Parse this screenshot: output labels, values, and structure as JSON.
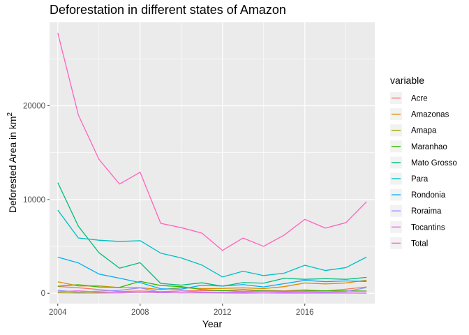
{
  "chart_data": {
    "type": "line",
    "title": "Deforestation in different states of Amazon",
    "xlabel": "Year",
    "ylabel": "Deforested Area in km",
    "ylabel_superscript": "2",
    "xlim": [
      2003.6,
      2019.4
    ],
    "ylim": [
      -1100,
      28900
    ],
    "x_ticks": [
      2004,
      2008,
      2012,
      2016
    ],
    "x_tick_labels": [
      "2004",
      "2008",
      "2012",
      "2016"
    ],
    "y_ticks": [
      0,
      10000,
      20000
    ],
    "y_tick_labels": [
      "0",
      "10000",
      "20000"
    ],
    "grid": true,
    "legend_title": "variable",
    "legend_position": "right",
    "x": [
      2004,
      2005,
      2006,
      2007,
      2008,
      2009,
      2010,
      2011,
      2012,
      2013,
      2014,
      2015,
      2016,
      2017,
      2018,
      2019
    ],
    "series": [
      {
        "name": "Acre",
        "color": "#F8766D",
        "values": [
          730,
          590,
          400,
          180,
          250,
          170,
          260,
          280,
          300,
          220,
          310,
          260,
          370,
          250,
          440,
          680
        ]
      },
      {
        "name": "Amazonas",
        "color": "#D89000",
        "values": [
          1230,
          780,
          790,
          610,
          600,
          400,
          600,
          500,
          520,
          580,
          500,
          710,
          1100,
          1000,
          1100,
          1400
        ]
      },
      {
        "name": "Amapa",
        "color": "#A3A500",
        "values": [
          50,
          30,
          30,
          40,
          100,
          70,
          50,
          70,
          30,
          20,
          30,
          20,
          20,
          20,
          20,
          10
        ]
      },
      {
        "name": "Maranhao",
        "color": "#39B600",
        "values": [
          750,
          920,
          670,
          630,
          1270,
          830,
          710,
          400,
          270,
          400,
          260,
          210,
          260,
          270,
          250,
          240
        ]
      },
      {
        "name": "Mato Grosso",
        "color": "#00BF7D",
        "values": [
          11800,
          7150,
          4330,
          2680,
          3260,
          1050,
          870,
          1120,
          760,
          1140,
          1080,
          1600,
          1490,
          1560,
          1490,
          1700
        ]
      },
      {
        "name": "Para",
        "color": "#00BFC4",
        "values": [
          8870,
          5900,
          5660,
          5530,
          5610,
          4280,
          3770,
          3010,
          1740,
          2350,
          1890,
          2150,
          2990,
          2430,
          2740,
          3860
        ]
      },
      {
        "name": "Rondonia",
        "color": "#00B0F6",
        "values": [
          3860,
          3240,
          2050,
          1610,
          1140,
          480,
          440,
          860,
          770,
          930,
          680,
          1030,
          1380,
          1240,
          1320,
          1260
        ]
      },
      {
        "name": "Roraima",
        "color": "#9590FF",
        "values": [
          310,
          130,
          230,
          310,
          580,
          120,
          260,
          140,
          120,
          170,
          220,
          160,
          200,
          130,
          190,
          610
        ]
      },
      {
        "name": "Tocantins",
        "color": "#E76BF3",
        "values": [
          160,
          270,
          120,
          60,
          110,
          60,
          50,
          40,
          50,
          70,
          50,
          60,
          60,
          30,
          30,
          20
        ]
      },
      {
        "name": "Total",
        "color": "#FF62BC",
        "values": [
          27770,
          19010,
          14290,
          11650,
          12910,
          7460,
          7000,
          6420,
          4570,
          5890,
          5010,
          6210,
          7890,
          6950,
          7540,
          9760
        ]
      }
    ]
  }
}
